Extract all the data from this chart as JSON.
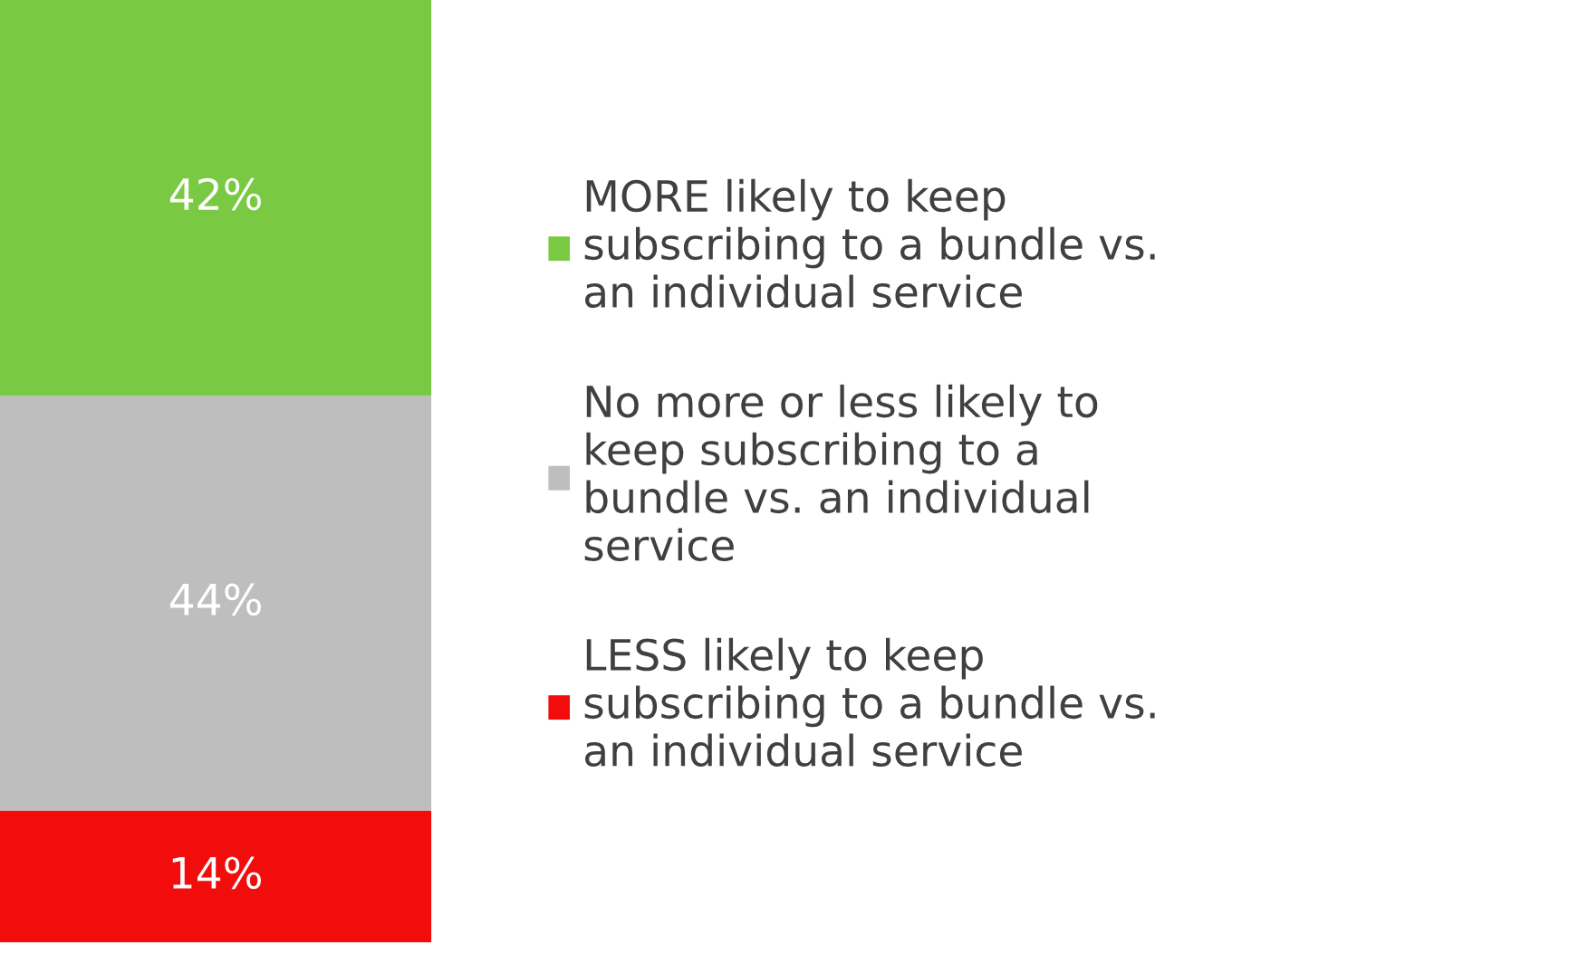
{
  "chart_data": {
    "type": "bar",
    "stacked": true,
    "categories": [
      null
    ],
    "legend": "right",
    "series": [
      {
        "name": "LESS likely to keep subscribing to a bundle vs. an individual service",
        "color": "#f20c0c",
        "values": [
          14
        ],
        "value_labels": [
          "14%"
        ]
      },
      {
        "name": "No more or less likely to keep subscribing to a bundle vs. an individual service",
        "color": "#bebebe",
        "values": [
          44
        ],
        "value_labels": [
          "44%"
        ]
      },
      {
        "name": "MORE likely to keep subscribing to a bundle vs. an individual service",
        "color": "#7ac943",
        "values": [
          42
        ],
        "value_labels": [
          "42%"
        ]
      }
    ]
  }
}
